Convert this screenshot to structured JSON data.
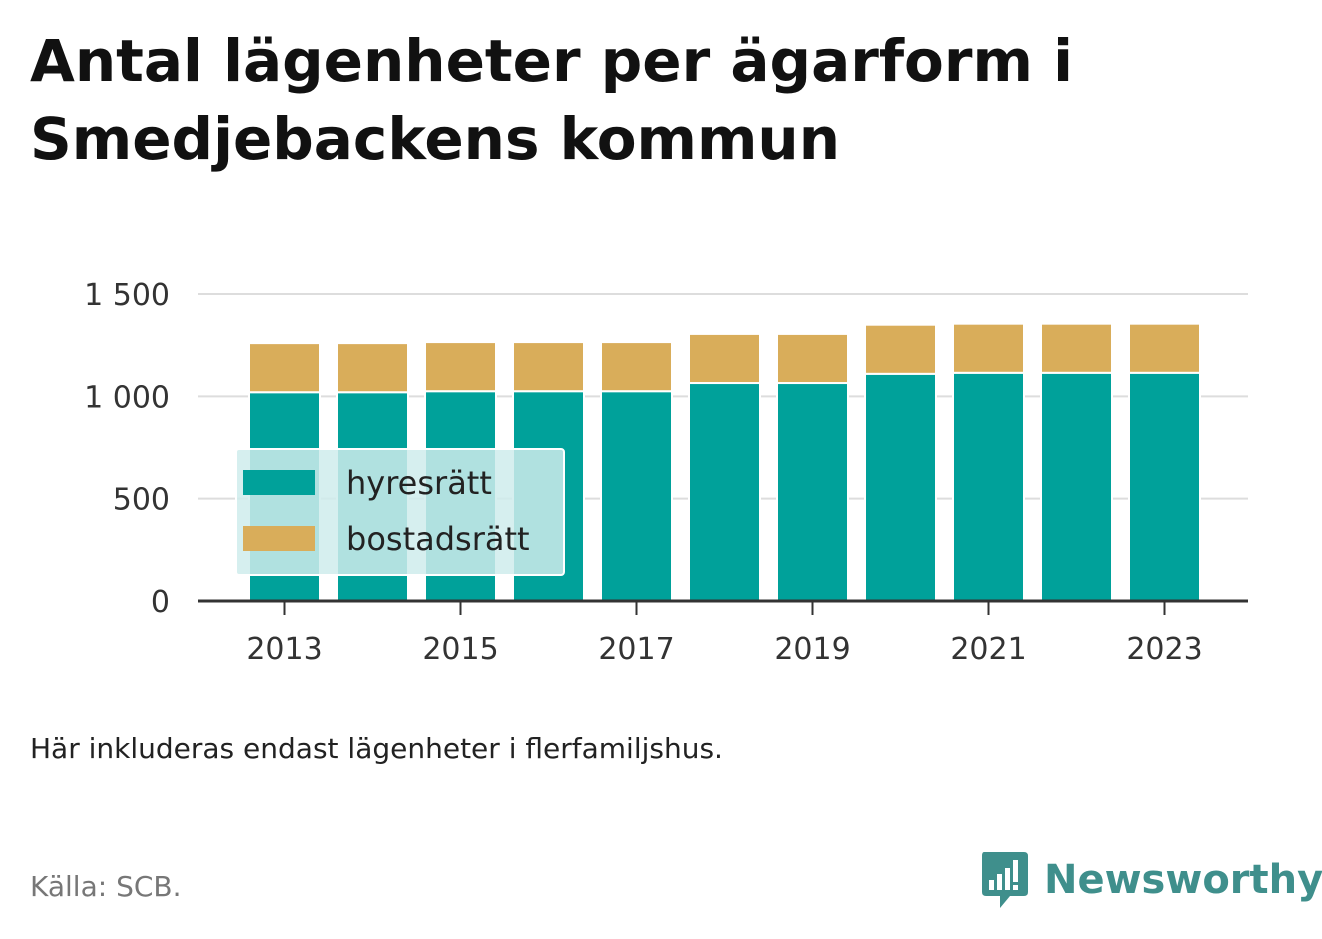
{
  "title": "Antal lägenheter per ägarform i Smedjebackens kommun",
  "note": "Här inkluderas endast lägenheter i flerfamiljshus.",
  "source": "Källa: SCB.",
  "brand": "Newsworthy",
  "colors": {
    "hyresratt": "#00a19a",
    "bostadsratt": "#d9ad5a",
    "legend_bg": "#cfecec",
    "brand": "#3f8f8c"
  },
  "chart_data": {
    "type": "bar",
    "stacked": true,
    "categories": [
      "2013",
      "2014",
      "2015",
      "2016",
      "2017",
      "2018",
      "2019",
      "2020",
      "2021",
      "2022",
      "2023"
    ],
    "x_tick_labels": [
      "2013",
      "2015",
      "2017",
      "2019",
      "2021",
      "2023"
    ],
    "y_tick_labels": [
      "0",
      "500",
      "1 000",
      "1 500"
    ],
    "y_ticks": [
      0,
      500,
      1000,
      1500
    ],
    "ylim": [
      0,
      1500
    ],
    "grid": true,
    "legend_position": "bottom-left, inside plot",
    "series": [
      {
        "name": "hyresrätt",
        "color": "#00a19a",
        "values": [
          1020,
          1020,
          1025,
          1025,
          1025,
          1065,
          1065,
          1110,
          1115,
          1115,
          1115
        ]
      },
      {
        "name": "bostadsrätt",
        "color": "#d9ad5a",
        "values": [
          240,
          240,
          240,
          240,
          240,
          240,
          240,
          240,
          240,
          240,
          240
        ]
      }
    ]
  }
}
